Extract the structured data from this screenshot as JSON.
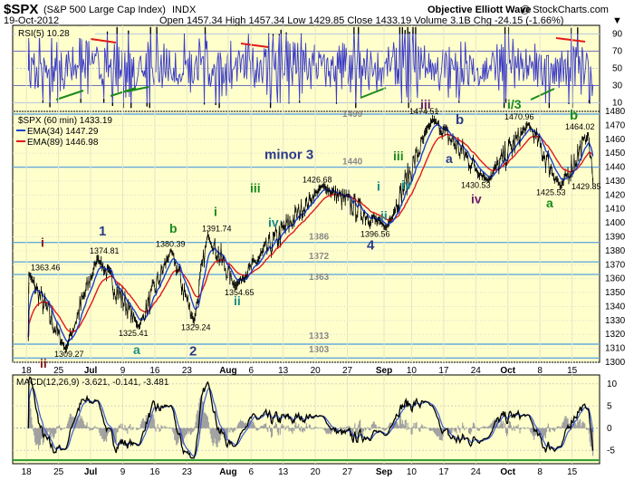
{
  "header": {
    "symbol": "$SPX",
    "description": "(S&P 500 Large Cap Index)",
    "exchange": "INDX",
    "date": "19-Oct-2012",
    "quote": "Open 1457.34  High 1457.34  Low 1429.85  Close 1433.19  Volume 3.1B  Chg -24.15 (-1.66%)",
    "watermark": "Objective Elliott Wave",
    "credit": "@ StockCharts.com"
  },
  "rsi": {
    "label": "RSI(5) 10.28",
    "levels": [
      "90",
      "70",
      "50",
      "30",
      "10"
    ]
  },
  "price": {
    "label": "$SPX (60 min) 1433.19",
    "ema34_label": "EMA(34) 1447.29",
    "ema89_label": "EMA(89) 1446.98",
    "ticks": [
      "1480",
      "1470",
      "1460",
      "1450",
      "1440",
      "1430",
      "1420",
      "1410",
      "1400",
      "1390",
      "1380",
      "1370",
      "1360",
      "1350",
      "1340",
      "1330",
      "1320",
      "1310",
      "1300"
    ],
    "levels": [
      "1499",
      "1440",
      "1386",
      "1372",
      "1363",
      "1313",
      "1303"
    ],
    "price_labels": [
      "1474.51",
      "1470.96",
      "1464.02",
      "1426.68",
      "1430.53",
      "1425.53",
      "1429.85",
      "1391.74",
      "1396.56",
      "1380.39",
      "1374.81",
      "1363.46",
      "1354.65",
      "1329.24",
      "1325.41",
      "1309.27"
    ],
    "waves": [
      "i",
      "1",
      "a",
      "ii",
      "b",
      "2",
      "i",
      "ii",
      "iii",
      "iv",
      "minor 3",
      "i",
      "ii",
      "4",
      "iii",
      "iv",
      "iii",
      "a",
      "b",
      "iv",
      "i/3",
      "a",
      "b"
    ]
  },
  "macd": {
    "label": "MACD(12,26,9) -3.621, -0.141, -3.481",
    "ticks": [
      "10",
      "5",
      "0",
      "-5"
    ]
  },
  "xaxis": {
    "labels": [
      "18",
      "25",
      "Jul",
      "9",
      "16",
      "23",
      "Aug",
      "6",
      "13",
      "20",
      "27",
      "Sep",
      "10",
      "17",
      "24",
      "Oct",
      "8",
      "15"
    ]
  },
  "colors": {
    "panel_bg": "#ffffcc",
    "hline": "#66aadd",
    "rsi_line": "#3a3ac8",
    "ema34": "#1a3fd0",
    "ema89": "#e01a1a",
    "wave_red": "#8a1a1a",
    "wave_green": "#1a8a1a",
    "wave_teal": "#1a8a8a",
    "wave_navy": "#2a3a8a",
    "wave_purple": "#6a1a6a",
    "macd_zero": "#2a9a2a"
  },
  "chart_data": {
    "type": "line",
    "title": "$SPX (S&P 500 Large Cap Index) INDX",
    "interval": "60 min",
    "y_range": [
      1300,
      1480
    ],
    "key_points": [
      {
        "date": "2012-06-18",
        "value": 1363.46,
        "label": "i"
      },
      {
        "date": "2012-06-26",
        "value": 1309.27,
        "label": "ii"
      },
      {
        "date": "2012-07-03",
        "value": 1374.81,
        "label": "1"
      },
      {
        "date": "2012-07-12",
        "value": 1325.41,
        "label": "a"
      },
      {
        "date": "2012-07-19",
        "value": 1380.39,
        "label": "b"
      },
      {
        "date": "2012-07-24",
        "value": 1329.24,
        "label": "2"
      },
      {
        "date": "2012-07-27",
        "value": 1391.74,
        "label": "i"
      },
      {
        "date": "2012-08-02",
        "value": 1354.65,
        "label": "ii"
      },
      {
        "date": "2012-08-21",
        "value": 1426.68,
        "label": "minor 3"
      },
      {
        "date": "2012-09-04",
        "value": 1396.56,
        "label": "4"
      },
      {
        "date": "2012-09-14",
        "value": 1474.51,
        "label": "iii"
      },
      {
        "date": "2012-09-26",
        "value": 1430.53,
        "label": "iv"
      },
      {
        "date": "2012-10-05",
        "value": 1470.96,
        "label": "i/3"
      },
      {
        "date": "2012-10-12",
        "value": 1425.53,
        "label": "a"
      },
      {
        "date": "2012-10-18",
        "value": 1464.02,
        "label": "b"
      },
      {
        "date": "2012-10-19",
        "value": 1429.85,
        "label": ""
      }
    ],
    "support_resistance": [
      1499,
      1440,
      1386,
      1372,
      1363,
      1313,
      1303
    ],
    "ema34_last": 1447.29,
    "ema89_last": 1446.98,
    "rsi": {
      "period": 5,
      "last": 10.28,
      "levels": [
        90,
        70,
        50,
        30,
        10
      ]
    },
    "macd": {
      "params": [
        12,
        26,
        9
      ],
      "macd": -3.621,
      "signal": -0.141,
      "histogram": -3.481,
      "y_range": [
        -8,
        12
      ]
    }
  }
}
